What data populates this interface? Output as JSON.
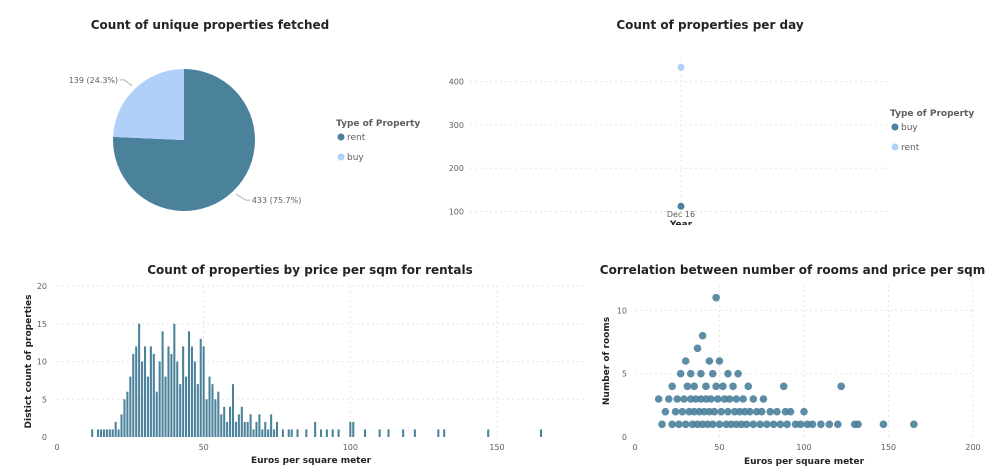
{
  "colors": {
    "dark": "#4a819b",
    "light": "#b0d0fa",
    "grid": "#e6e6e6"
  },
  "chart_data": [
    {
      "type": "pie",
      "title": "Count of unique properties fetched",
      "legend_title": "Type of Property",
      "legend_position": "right",
      "slices": [
        {
          "name": "rent",
          "value": 433,
          "label": "433 (75.7%)",
          "color": "#4a819b"
        },
        {
          "name": "buy",
          "value": 139,
          "label": "139 (24.3%)",
          "color": "#b0d0fa"
        }
      ]
    },
    {
      "type": "scatter",
      "title": "Count of properties per day",
      "xlabel": "Year",
      "categories": [
        "Dec 16"
      ],
      "ylim": [
        85,
        450
      ],
      "yticks": [
        100,
        200,
        300,
        400
      ],
      "grid": true,
      "legend_title": "Type of Property",
      "legend_position": "right",
      "series": [
        {
          "name": "buy",
          "color": "#4a819b",
          "values": [
            112
          ]
        },
        {
          "name": "rent",
          "color": "#b0d0fa",
          "values": [
            433
          ]
        }
      ]
    },
    {
      "type": "bar",
      "title": "Count of properties by price per sqm for rentals",
      "xlabel": "Euros per square meter",
      "ylabel": "Distict count of properties",
      "xlim": [
        0,
        180
      ],
      "xticks": [
        0,
        50,
        100,
        150
      ],
      "ylim": [
        0,
        20
      ],
      "yticks": [
        0,
        5,
        10,
        15,
        20
      ],
      "grid": true,
      "x": [
        12,
        14,
        15,
        16,
        17,
        18,
        19,
        20,
        21,
        22,
        23,
        24,
        25,
        26,
        27,
        28,
        29,
        30,
        31,
        32,
        33,
        34,
        35,
        36,
        37,
        38,
        39,
        40,
        41,
        42,
        43,
        44,
        45,
        46,
        47,
        48,
        49,
        50,
        51,
        52,
        53,
        54,
        55,
        56,
        57,
        58,
        59,
        60,
        61,
        62,
        63,
        64,
        65,
        66,
        67,
        68,
        69,
        70,
        71,
        72,
        73,
        74,
        75,
        77,
        79,
        80,
        82,
        85,
        88,
        90,
        92,
        94,
        96,
        100,
        101,
        105,
        110,
        113,
        118,
        122,
        130,
        132,
        147,
        165
      ],
      "values": [
        1,
        1,
        1,
        1,
        1,
        1,
        1,
        2,
        1,
        3,
        5,
        6,
        8,
        11,
        12,
        15,
        10,
        12,
        8,
        12,
        11,
        6,
        10,
        14,
        8,
        12,
        11,
        15,
        10,
        7,
        12,
        8,
        14,
        12,
        10,
        7,
        13,
        12,
        5,
        8,
        7,
        5,
        6,
        3,
        4,
        2,
        4,
        7,
        2,
        3,
        4,
        2,
        2,
        3,
        1,
        2,
        3,
        1,
        2,
        1,
        3,
        1,
        2,
        1,
        1,
        1,
        1,
        1,
        2,
        1,
        1,
        1,
        1,
        2,
        2,
        1,
        1,
        1,
        1,
        1,
        1,
        1,
        1,
        1
      ]
    },
    {
      "type": "scatter",
      "title": "Correlation between number of rooms and price per sqm",
      "xlabel": "Euros per square meter",
      "ylabel": "Number of rooms",
      "xlim": [
        0,
        200
      ],
      "xticks": [
        0,
        50,
        100,
        150,
        200
      ],
      "ylim": [
        0,
        12
      ],
      "yticks": [
        0,
        5,
        10
      ],
      "grid": true,
      "series": [
        {
          "color": "#4a819b",
          "points": [
            [
              14,
              3
            ],
            [
              16,
              1
            ],
            [
              18,
              2
            ],
            [
              20,
              3
            ],
            [
              22,
              1
            ],
            [
              22,
              4
            ],
            [
              24,
              2
            ],
            [
              25,
              3
            ],
            [
              26,
              1
            ],
            [
              27,
              5
            ],
            [
              28,
              2
            ],
            [
              29,
              3
            ],
            [
              30,
              6
            ],
            [
              30,
              1
            ],
            [
              31,
              4
            ],
            [
              32,
              2
            ],
            [
              33,
              3
            ],
            [
              33,
              5
            ],
            [
              34,
              1
            ],
            [
              35,
              2
            ],
            [
              35,
              4
            ],
            [
              36,
              3
            ],
            [
              37,
              7
            ],
            [
              37,
              1
            ],
            [
              38,
              2
            ],
            [
              39,
              3
            ],
            [
              39,
              5
            ],
            [
              40,
              8
            ],
            [
              40,
              1
            ],
            [
              41,
              2
            ],
            [
              42,
              4
            ],
            [
              42,
              3
            ],
            [
              43,
              1
            ],
            [
              44,
              6
            ],
            [
              44,
              2
            ],
            [
              45,
              3
            ],
            [
              46,
              1
            ],
            [
              46,
              5
            ],
            [
              47,
              2
            ],
            [
              48,
              11
            ],
            [
              48,
              4
            ],
            [
              49,
              3
            ],
            [
              50,
              1
            ],
            [
              50,
              6
            ],
            [
              51,
              2
            ],
            [
              52,
              4
            ],
            [
              53,
              3
            ],
            [
              54,
              1
            ],
            [
              55,
              2
            ],
            [
              55,
              5
            ],
            [
              56,
              3
            ],
            [
              57,
              1
            ],
            [
              58,
              4
            ],
            [
              59,
              2
            ],
            [
              60,
              1
            ],
            [
              60,
              3
            ],
            [
              61,
              5
            ],
            [
              62,
              2
            ],
            [
              63,
              1
            ],
            [
              64,
              3
            ],
            [
              65,
              2
            ],
            [
              66,
              1
            ],
            [
              67,
              4
            ],
            [
              68,
              2
            ],
            [
              70,
              1
            ],
            [
              70,
              3
            ],
            [
              72,
              2
            ],
            [
              74,
              1
            ],
            [
              75,
              2
            ],
            [
              76,
              3
            ],
            [
              78,
              1
            ],
            [
              80,
              2
            ],
            [
              82,
              1
            ],
            [
              84,
              2
            ],
            [
              86,
              1
            ],
            [
              88,
              4
            ],
            [
              89,
              2
            ],
            [
              90,
              1
            ],
            [
              92,
              2
            ],
            [
              95,
              1
            ],
            [
              98,
              1
            ],
            [
              100,
              2
            ],
            [
              102,
              1
            ],
            [
              105,
              1
            ],
            [
              110,
              1
            ],
            [
              115,
              1
            ],
            [
              120,
              1
            ],
            [
              122,
              4
            ],
            [
              130,
              1
            ],
            [
              132,
              1
            ],
            [
              147,
              1
            ],
            [
              165,
              1
            ]
          ]
        }
      ]
    }
  ]
}
